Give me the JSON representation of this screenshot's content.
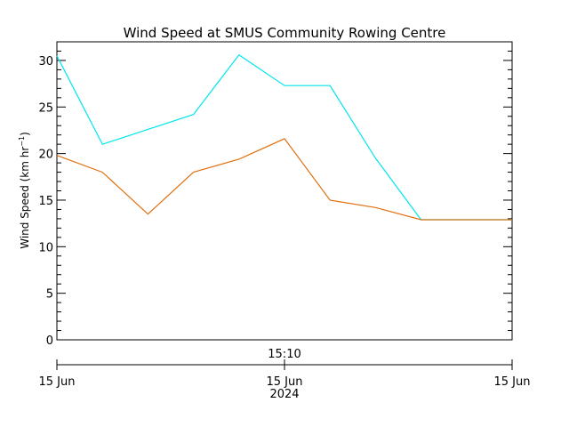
{
  "chart_data": {
    "type": "line",
    "title": "Wind Speed at SMUS Community Rowing Centre",
    "ylabel_prefix": "Wind Speed (km hr",
    "ylabel_exp": "−1",
    "ylabel_suffix": ")",
    "ylim": [
      0,
      32
    ],
    "yticks": [
      "0",
      "5",
      "10",
      "15",
      "20",
      "25",
      "30"
    ],
    "x_time_label": "15:10",
    "x_date_labels": [
      "15 Jun",
      "15 Jun",
      "15 Jun"
    ],
    "x_year_label": "2024",
    "grid": false,
    "series": [
      {
        "color": "#00e5ee",
        "values": [
          30.5,
          21.0,
          22.6,
          24.2,
          30.6,
          27.3,
          27.3,
          19.5,
          12.9,
          12.9,
          12.9
        ]
      },
      {
        "color": "#e07010",
        "values": [
          19.8,
          18.0,
          13.5,
          18.0,
          19.4,
          21.6,
          15.0,
          14.2,
          12.9,
          12.9,
          12.9
        ]
      }
    ]
  }
}
